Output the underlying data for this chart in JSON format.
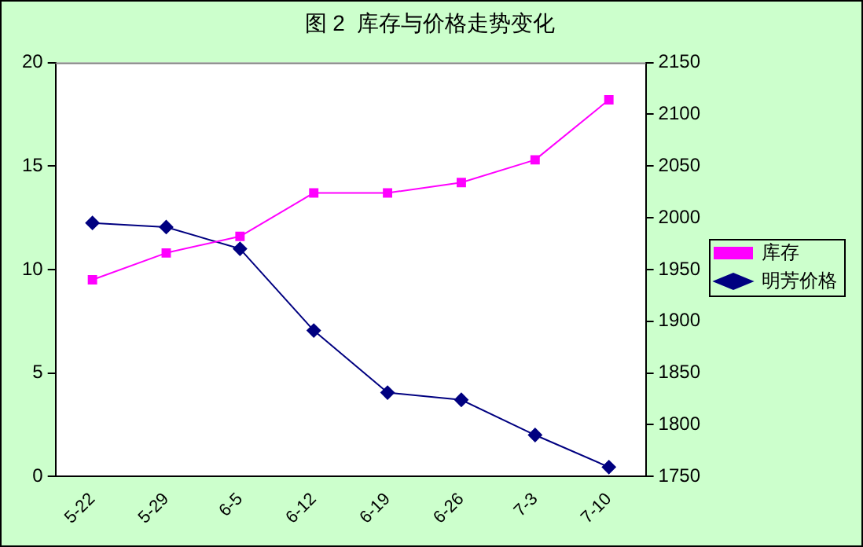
{
  "chart_data": {
    "type": "line",
    "title": "图 2  库存与价格走势变化",
    "categories": [
      "5-22",
      "5-29",
      "6-5",
      "6-12",
      "6-19",
      "6-26",
      "7-3",
      "7-10"
    ],
    "series": [
      {
        "name": "库存",
        "color": "#ff00ff",
        "marker": "square",
        "values": [
          9.5,
          10.8,
          11.6,
          13.7,
          13.7,
          14.2,
          15.3,
          18.2
        ]
      },
      {
        "name": "明芳价格",
        "color": "#000080",
        "marker": "diamond",
        "axis": "y2",
        "values": [
          1995,
          1991,
          1970,
          1891,
          1831,
          1824,
          1790,
          1759
        ]
      }
    ],
    "ylim": [
      0,
      20
    ],
    "yticks": [
      0,
      5,
      10,
      15,
      20
    ],
    "y2lim": [
      1750,
      2150
    ],
    "y2ticks": [
      1750,
      1800,
      1850,
      1900,
      1950,
      2000,
      2050,
      2100,
      2150
    ],
    "grid": false,
    "legend": "right",
    "line_style": "solid"
  }
}
